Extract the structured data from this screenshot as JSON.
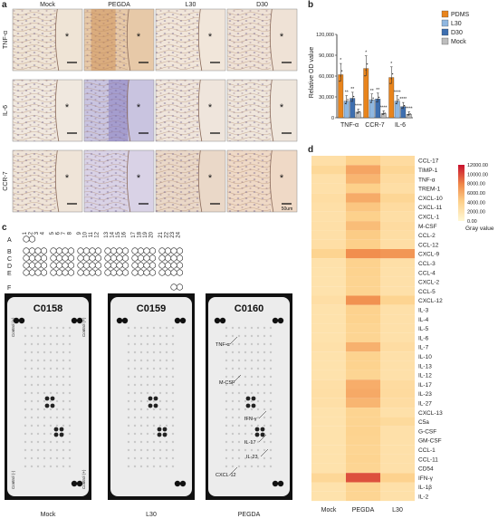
{
  "panel_letters": {
    "a": "a",
    "b": "b",
    "c": "c",
    "d": "d"
  },
  "panel_a": {
    "columns": [
      "Mock",
      "PEGDA",
      "L30",
      "D30"
    ],
    "rows": [
      "TNF-α",
      "IL-6",
      "CCR-7"
    ],
    "asterisk": "*",
    "scale_label": "50um"
  },
  "panel_c": {
    "row_letters": [
      "A",
      "B",
      "C",
      "D",
      "E",
      "F"
    ],
    "column_numbers": [
      "1",
      "2",
      "3",
      "4",
      "5",
      "6",
      "7",
      "8",
      "9",
      "10",
      "11",
      "12",
      "13",
      "14",
      "15",
      "16",
      "17",
      "18",
      "19",
      "20",
      "21",
      "22",
      "23",
      "24"
    ],
    "membranes": [
      {
        "id": "C0158",
        "label": "Mock",
        "control_pos_top": "Control (+)",
        "control_pos_top_right": "Control (+)",
        "control_neg": "Control (-)",
        "control_pos_bottom": "Control (+)"
      },
      {
        "id": "C0159",
        "label": "L30"
      },
      {
        "id": "C0160",
        "label": "PEGDA",
        "annotations": [
          "TNF-α",
          "M-CSF",
          "IFN-γ",
          "IL-17",
          "IL-23",
          "CXCL-12"
        ]
      }
    ]
  },
  "colors": {
    "pdms": "#e8841c",
    "l30": "#8fb7e0",
    "d30": "#3e6fb0",
    "mock": "#bdbdbd",
    "heat_low": "#fff4c8",
    "heat_high": "#c8102e"
  },
  "chart_data": [
    {
      "type": "bar",
      "panel": "b",
      "categories": [
        "TNF-α",
        "CCR-7",
        "IL-6"
      ],
      "ylabel": "Relative OD value",
      "ylim": [
        0,
        120000
      ],
      "yticks": [
        "0",
        "30,000",
        "60,000",
        "90,000",
        "120,000"
      ],
      "series": [
        {
          "name": "PDMS",
          "values": [
            62000,
            71000,
            58000
          ]
        },
        {
          "name": "L30",
          "values": [
            24000,
            26000,
            24000
          ]
        },
        {
          "name": "D30",
          "values": [
            28000,
            27000,
            16000
          ]
        },
        {
          "name": "Mock",
          "values": [
            8000,
            6000,
            5000
          ]
        }
      ],
      "significance": [
        [
          "*",
          "**",
          "**",
          "****"
        ],
        [
          "*",
          "**",
          "**",
          "****"
        ],
        [
          "*",
          "****",
          "****",
          "****"
        ]
      ]
    },
    {
      "type": "heatmap",
      "panel": "d",
      "columns": [
        "Mock",
        "PEGDA",
        "L30"
      ],
      "rows": [
        "CCL-17",
        "TIMP-1",
        "TNF-α",
        "TREM-1",
        "CXCL-10",
        "CXCL-11",
        "CXCL-1",
        "M-CSF",
        "CCL-2",
        "CCL-12",
        "CXCL-9",
        "CCL-3",
        "CCL-4",
        "CXCL-2",
        "CCL-5",
        "CXCL-12",
        "IL-3",
        "IL-4",
        "IL-5",
        "IL-6",
        "IL-7",
        "IL-10",
        "IL-13",
        "IL-12",
        "IL-17",
        "IL-23",
        "IL-27",
        "CXCL-13",
        "C5a",
        "G-CSF",
        "GM-CSF",
        "CCL-1",
        "CCL-11",
        "CD54",
        "IFN-γ",
        "IL-1β",
        "IL-2"
      ],
      "values": [
        [
          2600,
          4200,
          3000
        ],
        [
          3400,
          6400,
          3600
        ],
        [
          2500,
          5600,
          3000
        ],
        [
          2500,
          4200,
          2700
        ],
        [
          2800,
          6100,
          3600
        ],
        [
          2600,
          4700,
          3000
        ],
        [
          2500,
          4100,
          2700
        ],
        [
          2600,
          5200,
          3000
        ],
        [
          2600,
          4400,
          2800
        ],
        [
          2700,
          4200,
          2700
        ],
        [
          3800,
          7600,
          7200
        ],
        [
          2400,
          4000,
          2600
        ],
        [
          2300,
          3900,
          2500
        ],
        [
          2300,
          3800,
          2500
        ],
        [
          2300,
          3800,
          2500
        ],
        [
          2700,
          7400,
          3800
        ],
        [
          2300,
          4000,
          2500
        ],
        [
          2300,
          3900,
          2500
        ],
        [
          2300,
          3700,
          2500
        ],
        [
          2300,
          3700,
          2500
        ],
        [
          2500,
          5800,
          2900
        ],
        [
          2300,
          3900,
          2500
        ],
        [
          2300,
          3900,
          2500
        ],
        [
          2300,
          3700,
          2500
        ],
        [
          2600,
          6000,
          3000
        ],
        [
          2700,
          6200,
          3100
        ],
        [
          2600,
          5600,
          2900
        ],
        [
          2300,
          3800,
          2500
        ],
        [
          2300,
          3800,
          3200
        ],
        [
          2300,
          3900,
          2500
        ],
        [
          2300,
          3800,
          2500
        ],
        [
          2300,
          3700,
          2500
        ],
        [
          2300,
          3800,
          2500
        ],
        [
          2300,
          3700,
          2500
        ],
        [
          3500,
          9800,
          4000
        ],
        [
          2300,
          3800,
          2500
        ],
        [
          2300,
          3700,
          2500
        ]
      ],
      "colorbar": {
        "label": "Gray value",
        "ticks": [
          "12000.00",
          "10000.00",
          "8000.00",
          "6000.00",
          "4000.00",
          "2000.00",
          "0.00"
        ],
        "min": 0,
        "max": 12000
      }
    }
  ]
}
